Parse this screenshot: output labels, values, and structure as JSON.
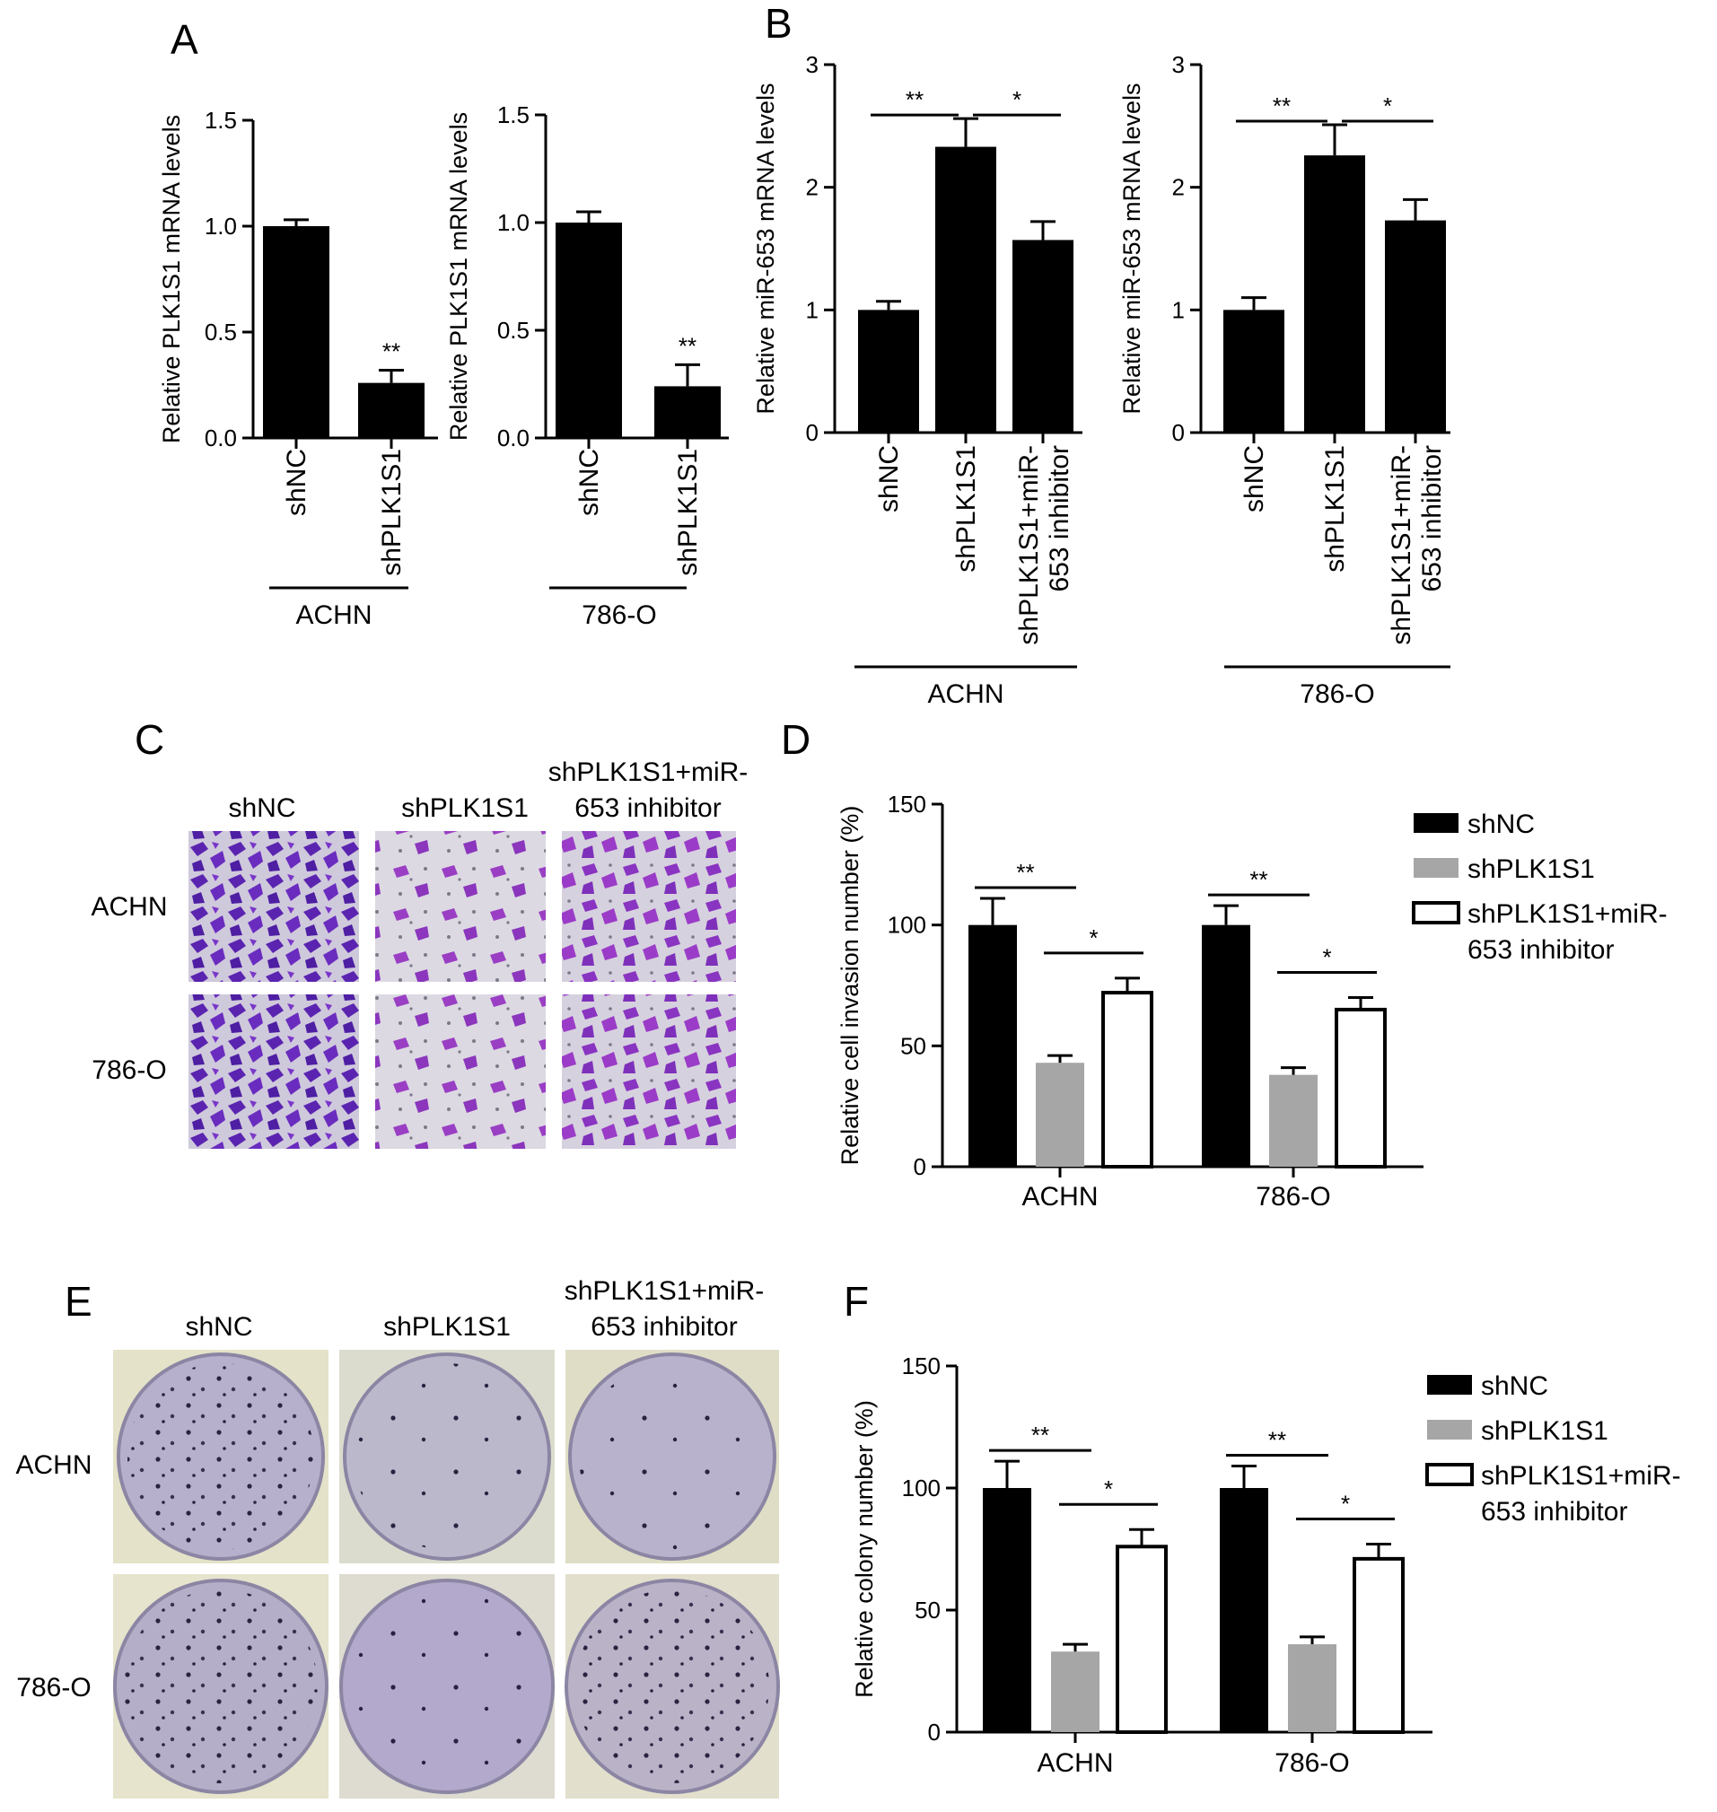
{
  "panels": {
    "A": "A",
    "B": "B",
    "C": "C",
    "D": "D",
    "E": "E",
    "F": "F"
  },
  "groups": {
    "shNC": "shNC",
    "shPLK1S1": "shPLK1S1",
    "combo_line1": "shPLK1S1+miR-",
    "combo_line2": "653 inhibitor",
    "combo_full": "shPLK1S1+miR-653 inhibitor"
  },
  "cell_lines": {
    "achn": "ACHN",
    "c786": "786-O"
  },
  "colors": {
    "black": "#000000",
    "gray": "#a6a6a6",
    "white": "#ffffff",
    "crystal_violet": "#7a2fb4",
    "dish": "#b9b3cf"
  },
  "significance": {
    "double": "**",
    "single": "*"
  },
  "chart_data": [
    {
      "type": "bar",
      "panel": "A",
      "cell_line": "ACHN",
      "ylabel": "Relative PLK1S1 mRNA levels",
      "ylim": [
        0,
        1.5
      ],
      "yticks": [
        "0.0",
        "0.5",
        "1.0",
        "1.5"
      ],
      "ytick_values": [
        0,
        0.5,
        1.0,
        1.5
      ],
      "categories": [
        "shNC",
        "shPLK1S1"
      ],
      "values": [
        1.0,
        0.26
      ],
      "errors": [
        0.03,
        0.06
      ],
      "annotations": [
        {
          "over": 1,
          "text": "**"
        }
      ]
    },
    {
      "type": "bar",
      "panel": "A",
      "cell_line": "786-O",
      "ylabel": "Relative PLK1S1 mRNA levels",
      "ylim": [
        0,
        1.5
      ],
      "yticks": [
        "0.0",
        "0.5",
        "1.0",
        "1.5"
      ],
      "ytick_values": [
        0,
        0.5,
        1.0,
        1.5
      ],
      "categories": [
        "shNC",
        "shPLK1S1"
      ],
      "values": [
        1.0,
        0.24
      ],
      "errors": [
        0.05,
        0.1
      ],
      "annotations": [
        {
          "over": 1,
          "text": "**"
        }
      ]
    },
    {
      "type": "bar",
      "panel": "B",
      "cell_line": "ACHN",
      "ylabel": "Relative miR-653 mRNA levels",
      "ylim": [
        0,
        3
      ],
      "yticks": [
        "0",
        "1",
        "2",
        "3"
      ],
      "ytick_values": [
        0,
        1,
        2,
        3
      ],
      "categories": [
        "shNC",
        "shPLK1S1",
        "shPLK1S1+miR-653 inhibitor"
      ],
      "values": [
        1.0,
        2.33,
        1.57
      ],
      "errors": [
        0.07,
        0.23,
        0.15
      ],
      "comparisons": [
        {
          "from": 0,
          "to": 1,
          "text": "**"
        },
        {
          "from": 1,
          "to": 2,
          "text": "*"
        }
      ]
    },
    {
      "type": "bar",
      "panel": "B",
      "cell_line": "786-O",
      "ylabel": "Relative miR-653 mRNA levels",
      "ylim": [
        0,
        3
      ],
      "yticks": [
        "0",
        "1",
        "2",
        "3"
      ],
      "ytick_values": [
        0,
        1,
        2,
        3
      ],
      "categories": [
        "shNC",
        "shPLK1S1",
        "shPLK1S1+miR-653 inhibitor"
      ],
      "values": [
        1.0,
        2.26,
        1.73
      ],
      "errors": [
        0.1,
        0.25,
        0.17
      ],
      "comparisons": [
        {
          "from": 0,
          "to": 1,
          "text": "**"
        },
        {
          "from": 1,
          "to": 2,
          "text": "*"
        }
      ]
    },
    {
      "type": "bar",
      "panel": "D",
      "ylabel": "Relative cell invasion number (%)",
      "ylim": [
        0,
        150
      ],
      "yticks": [
        "0",
        "50",
        "100",
        "150"
      ],
      "ytick_values": [
        0,
        50,
        100,
        150
      ],
      "categories": [
        "ACHN",
        "786-O"
      ],
      "series": [
        {
          "name": "shNC",
          "values": [
            100,
            100
          ],
          "errors": [
            11,
            8
          ]
        },
        {
          "name": "shPLK1S1",
          "values": [
            43,
            38
          ],
          "errors": [
            3,
            3
          ]
        },
        {
          "name": "shPLK1S1+miR-653 inhibitor",
          "values": [
            72,
            65
          ],
          "errors": [
            6,
            5
          ]
        }
      ],
      "legend": "top-right",
      "comparisons": [
        {
          "group": 0,
          "from": 0,
          "to": 1,
          "text": "**"
        },
        {
          "group": 0,
          "from": 1,
          "to": 2,
          "text": "*"
        },
        {
          "group": 1,
          "from": 0,
          "to": 1,
          "text": "**"
        },
        {
          "group": 1,
          "from": 1,
          "to": 2,
          "text": "*"
        }
      ]
    },
    {
      "type": "bar",
      "panel": "F",
      "ylabel": "Relative colony number (%)",
      "ylim": [
        0,
        150
      ],
      "yticks": [
        "0",
        "50",
        "100",
        "150"
      ],
      "ytick_values": [
        0,
        50,
        100,
        150
      ],
      "categories": [
        "ACHN",
        "786-O"
      ],
      "series": [
        {
          "name": "shNC",
          "values": [
            100,
            100
          ],
          "errors": [
            11,
            9
          ]
        },
        {
          "name": "shPLK1S1",
          "values": [
            33,
            36
          ],
          "errors": [
            3,
            3
          ]
        },
        {
          "name": "shPLK1S1+miR-653 inhibitor",
          "values": [
            76,
            71
          ],
          "errors": [
            7,
            6
          ]
        }
      ],
      "legend": "top-right",
      "comparisons": [
        {
          "group": 0,
          "from": 0,
          "to": 1,
          "text": "**"
        },
        {
          "group": 0,
          "from": 1,
          "to": 2,
          "text": "*"
        },
        {
          "group": 1,
          "from": 0,
          "to": 1,
          "text": "**"
        },
        {
          "group": 1,
          "from": 1,
          "to": 2,
          "text": "*"
        }
      ]
    }
  ]
}
